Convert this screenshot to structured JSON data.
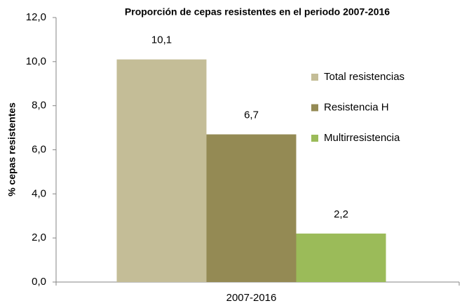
{
  "chart_data": {
    "type": "bar",
    "title": "Proporción de cepas resistentes en el periodo 2007-2016",
    "ylabel": "% cepas resistentes",
    "categories": [
      "2007-2016"
    ],
    "series": [
      {
        "name": "Total resistencias",
        "color": "#c4bd97",
        "values": [
          10.1
        ],
        "value_labels": [
          "10,1"
        ]
      },
      {
        "name": "Resistencia H",
        "color": "#948a54",
        "values": [
          6.7
        ],
        "value_labels": [
          "6,7"
        ]
      },
      {
        "name": "Multirresistencia",
        "color": "#9bbb59",
        "values": [
          2.2
        ],
        "value_labels": [
          "2,2"
        ]
      }
    ],
    "ylim": [
      0,
      12
    ],
    "yticks": [
      {
        "value": 0,
        "label": "0,0"
      },
      {
        "value": 2,
        "label": "2,0"
      },
      {
        "value": 4,
        "label": "4,0"
      },
      {
        "value": 6,
        "label": "6,0"
      },
      {
        "value": 8,
        "label": "8,0"
      },
      {
        "value": 10,
        "label": "10,0"
      },
      {
        "value": 12,
        "label": "12,0"
      }
    ],
    "grid": false,
    "legend": "right"
  }
}
